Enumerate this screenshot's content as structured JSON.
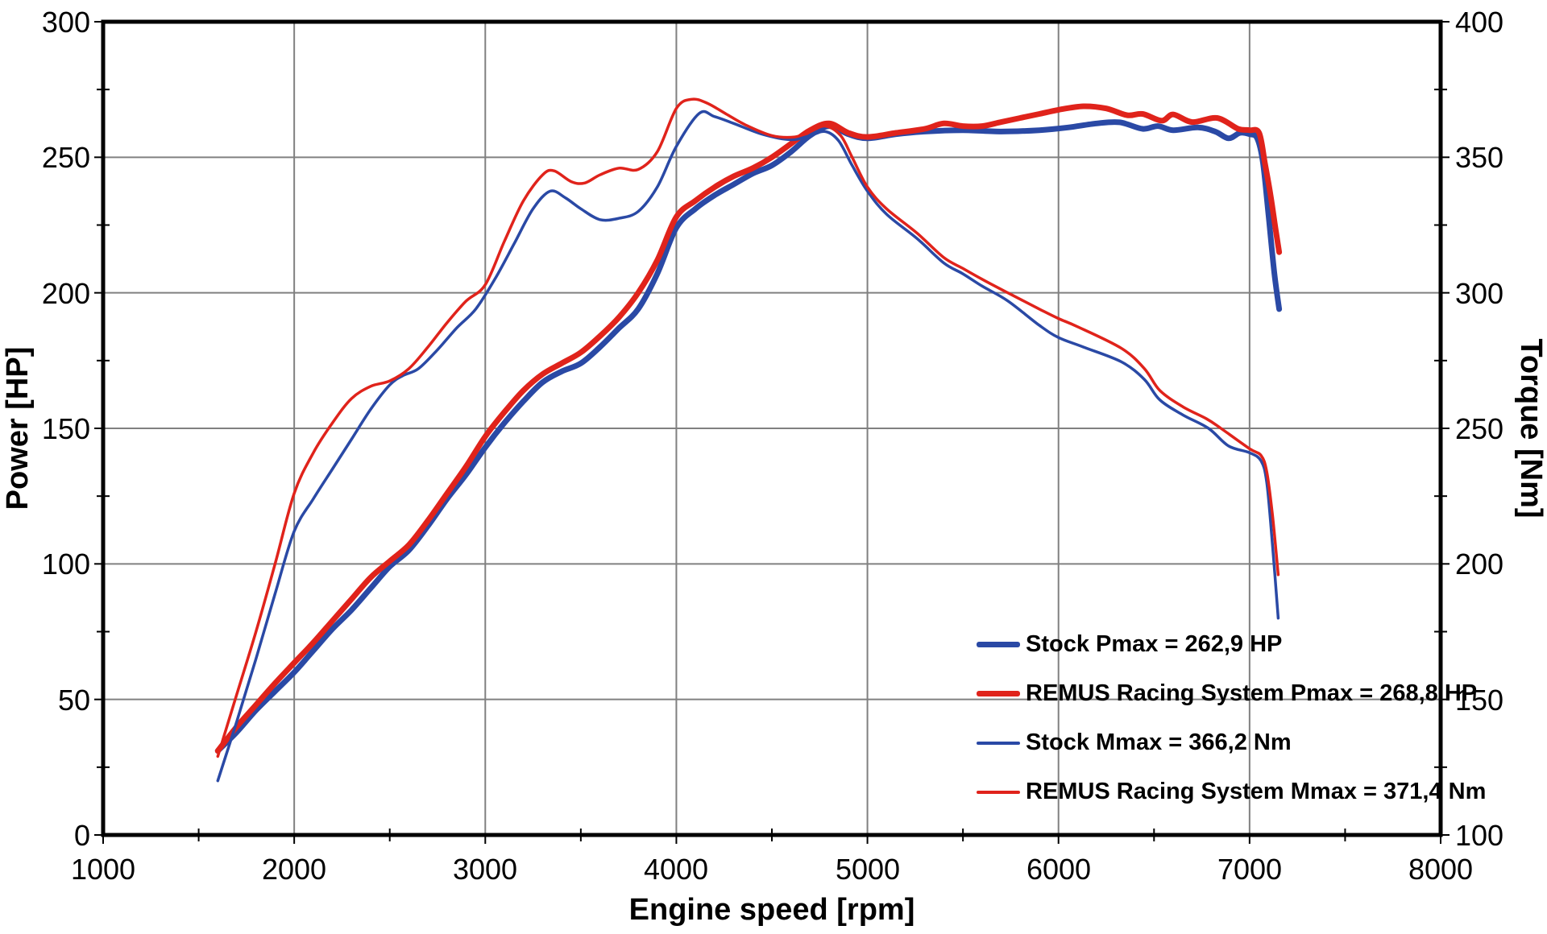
{
  "chart_data": {
    "type": "line",
    "title": "",
    "xlabel": "Engine speed [rpm]",
    "ylabel_left": "Power [HP]",
    "ylabel_right": "Torque [Nm]",
    "xlim": [
      1000,
      8000
    ],
    "ylim_left": [
      0,
      300
    ],
    "ylim_right": [
      100,
      400
    ],
    "grid": true,
    "legend_position": "inside-lower-right",
    "x_ticks": [
      1000,
      2000,
      3000,
      4000,
      5000,
      6000,
      7000,
      8000
    ],
    "y_ticks_left": [
      300,
      250,
      200,
      150,
      100,
      50,
      0
    ],
    "y_ticks_right": [
      400,
      350,
      300,
      250,
      200,
      150,
      100
    ],
    "x_minor_step": 500,
    "y_minor_step": 25,
    "colors": {
      "stock": "#2a49a5",
      "remus": "#e0231b",
      "grid": "#808080",
      "frame": "#000000"
    },
    "series": [
      {
        "name": "stock-power",
        "legend": "Stock Pmax = 262,9 HP",
        "axis": "power",
        "color": "#2a49a5",
        "width": 7,
        "points": [
          [
            1600,
            31
          ],
          [
            1700,
            38
          ],
          [
            1800,
            46
          ],
          [
            1900,
            53
          ],
          [
            2000,
            60
          ],
          [
            2100,
            68
          ],
          [
            2200,
            76
          ],
          [
            2300,
            83
          ],
          [
            2400,
            91
          ],
          [
            2500,
            99
          ],
          [
            2600,
            105
          ],
          [
            2700,
            114
          ],
          [
            2800,
            124
          ],
          [
            2900,
            133
          ],
          [
            3000,
            143
          ],
          [
            3100,
            152
          ],
          [
            3200,
            160
          ],
          [
            3300,
            167
          ],
          [
            3400,
            171
          ],
          [
            3500,
            174
          ],
          [
            3600,
            180
          ],
          [
            3700,
            187
          ],
          [
            3800,
            194
          ],
          [
            3900,
            207
          ],
          [
            4000,
            224
          ],
          [
            4100,
            231
          ],
          [
            4200,
            236
          ],
          [
            4300,
            240
          ],
          [
            4400,
            244
          ],
          [
            4500,
            247
          ],
          [
            4600,
            252
          ],
          [
            4700,
            258
          ],
          [
            4800,
            261.5
          ],
          [
            4900,
            258.5
          ],
          [
            5000,
            257
          ],
          [
            5150,
            258.5
          ],
          [
            5300,
            259.5
          ],
          [
            5500,
            260
          ],
          [
            5700,
            259.5
          ],
          [
            5900,
            260
          ],
          [
            6050,
            261
          ],
          [
            6200,
            262.5
          ],
          [
            6320,
            262.9
          ],
          [
            6440,
            260.5
          ],
          [
            6520,
            261.5
          ],
          [
            6600,
            260
          ],
          [
            6730,
            261
          ],
          [
            6820,
            259.5
          ],
          [
            6890,
            257
          ],
          [
            6950,
            259
          ],
          [
            7000,
            258.5
          ],
          [
            7040,
            257
          ],
          [
            7070,
            248
          ],
          [
            7100,
            228
          ],
          [
            7130,
            207
          ],
          [
            7155,
            194
          ]
        ]
      },
      {
        "name": "remus-power",
        "legend": "REMUS Racing System Pmax = 268,8 HP",
        "axis": "power",
        "color": "#e0231b",
        "width": 7,
        "points": [
          [
            1600,
            31
          ],
          [
            1700,
            40
          ],
          [
            1800,
            48
          ],
          [
            1900,
            56
          ],
          [
            2000,
            63.5
          ],
          [
            2100,
            71
          ],
          [
            2200,
            79
          ],
          [
            2300,
            87
          ],
          [
            2400,
            95
          ],
          [
            2500,
            101
          ],
          [
            2600,
            107
          ],
          [
            2700,
            116
          ],
          [
            2800,
            126
          ],
          [
            2900,
            136
          ],
          [
            3000,
            147
          ],
          [
            3100,
            156
          ],
          [
            3200,
            164
          ],
          [
            3300,
            170
          ],
          [
            3400,
            174
          ],
          [
            3500,
            178
          ],
          [
            3600,
            184
          ],
          [
            3700,
            191
          ],
          [
            3800,
            200
          ],
          [
            3900,
            212
          ],
          [
            4000,
            228
          ],
          [
            4100,
            234
          ],
          [
            4200,
            239
          ],
          [
            4300,
            243
          ],
          [
            4400,
            246
          ],
          [
            4500,
            250
          ],
          [
            4600,
            255
          ],
          [
            4700,
            260
          ],
          [
            4800,
            262.5
          ],
          [
            4900,
            259
          ],
          [
            5000,
            257.5
          ],
          [
            5150,
            259
          ],
          [
            5300,
            260.5
          ],
          [
            5400,
            262.5
          ],
          [
            5500,
            261.5
          ],
          [
            5600,
            261.5
          ],
          [
            5700,
            263
          ],
          [
            5800,
            264.5
          ],
          [
            5900,
            266
          ],
          [
            6000,
            267.5
          ],
          [
            6130,
            268.8
          ],
          [
            6250,
            268
          ],
          [
            6360,
            265.5
          ],
          [
            6440,
            266
          ],
          [
            6540,
            263.5
          ],
          [
            6600,
            265.8
          ],
          [
            6700,
            263
          ],
          [
            6830,
            264.5
          ],
          [
            6940,
            260.5
          ],
          [
            7000,
            260
          ],
          [
            7050,
            259
          ],
          [
            7080,
            248
          ],
          [
            7110,
            236
          ],
          [
            7135,
            224
          ],
          [
            7155,
            215
          ]
        ]
      },
      {
        "name": "stock-torque",
        "legend": "Stock Mmax = 366,2 Nm",
        "axis": "torque",
        "color": "#2a49a5",
        "width": 3.5,
        "points": [
          [
            1600,
            120
          ],
          [
            1700,
            142
          ],
          [
            1800,
            165
          ],
          [
            1900,
            189
          ],
          [
            2000,
            212
          ],
          [
            2100,
            224
          ],
          [
            2200,
            235
          ],
          [
            2300,
            246
          ],
          [
            2400,
            257
          ],
          [
            2500,
            266
          ],
          [
            2570,
            269.5
          ],
          [
            2650,
            272
          ],
          [
            2750,
            279
          ],
          [
            2850,
            287
          ],
          [
            2950,
            294
          ],
          [
            3050,
            305
          ],
          [
            3150,
            318
          ],
          [
            3250,
            331
          ],
          [
            3340,
            337.5
          ],
          [
            3420,
            335
          ],
          [
            3500,
            331
          ],
          [
            3600,
            327
          ],
          [
            3700,
            327.5
          ],
          [
            3800,
            330
          ],
          [
            3900,
            339
          ],
          [
            4000,
            354
          ],
          [
            4120,
            366.2
          ],
          [
            4200,
            365
          ],
          [
            4300,
            362.5
          ],
          [
            4450,
            358.5
          ],
          [
            4600,
            356.5
          ],
          [
            4700,
            358
          ],
          [
            4780,
            359.5
          ],
          [
            4850,
            356
          ],
          [
            4920,
            347
          ],
          [
            5000,
            337.5
          ],
          [
            5100,
            329
          ],
          [
            5260,
            320
          ],
          [
            5400,
            311
          ],
          [
            5500,
            307
          ],
          [
            5600,
            302.5
          ],
          [
            5735,
            297
          ],
          [
            5900,
            288
          ],
          [
            6000,
            283.5
          ],
          [
            6130,
            280
          ],
          [
            6330,
            274.5
          ],
          [
            6450,
            268
          ],
          [
            6530,
            260.5
          ],
          [
            6650,
            255
          ],
          [
            6785,
            250
          ],
          [
            6890,
            243.5
          ],
          [
            7000,
            241
          ],
          [
            7060,
            238
          ],
          [
            7090,
            230
          ],
          [
            7120,
            207
          ],
          [
            7150,
            180
          ]
        ]
      },
      {
        "name": "remus-torque",
        "legend": "REMUS Racing System Mmax = 371,4 Nm",
        "axis": "torque",
        "color": "#e0231b",
        "width": 3.5,
        "points": [
          [
            1600,
            129
          ],
          [
            1700,
            152
          ],
          [
            1800,
            175
          ],
          [
            1900,
            200
          ],
          [
            2000,
            226
          ],
          [
            2100,
            241
          ],
          [
            2200,
            252
          ],
          [
            2300,
            261
          ],
          [
            2400,
            265.5
          ],
          [
            2500,
            267.5
          ],
          [
            2600,
            272
          ],
          [
            2700,
            280
          ],
          [
            2800,
            289
          ],
          [
            2900,
            297
          ],
          [
            3000,
            303
          ],
          [
            3100,
            319
          ],
          [
            3200,
            334
          ],
          [
            3300,
            343.5
          ],
          [
            3360,
            345
          ],
          [
            3450,
            341
          ],
          [
            3520,
            340.5
          ],
          [
            3600,
            343.5
          ],
          [
            3700,
            346
          ],
          [
            3800,
            345.5
          ],
          [
            3900,
            352
          ],
          [
            4000,
            368
          ],
          [
            4080,
            371.4
          ],
          [
            4160,
            370
          ],
          [
            4260,
            366
          ],
          [
            4360,
            362
          ],
          [
            4500,
            358
          ],
          [
            4620,
            357.5
          ],
          [
            4700,
            359.5
          ],
          [
            4780,
            361.5
          ],
          [
            4860,
            358
          ],
          [
            4920,
            350
          ],
          [
            5000,
            339
          ],
          [
            5100,
            331
          ],
          [
            5260,
            322
          ],
          [
            5400,
            313
          ],
          [
            5500,
            309
          ],
          [
            5600,
            305
          ],
          [
            5735,
            300
          ],
          [
            5900,
            294
          ],
          [
            6000,
            290.5
          ],
          [
            6100,
            287.5
          ],
          [
            6330,
            279.5
          ],
          [
            6450,
            272
          ],
          [
            6530,
            264
          ],
          [
            6650,
            258
          ],
          [
            6775,
            253.5
          ],
          [
            6850,
            250
          ],
          [
            7000,
            242.5
          ],
          [
            7060,
            240
          ],
          [
            7090,
            234
          ],
          [
            7120,
            218
          ],
          [
            7150,
            196
          ]
        ]
      }
    ]
  }
}
